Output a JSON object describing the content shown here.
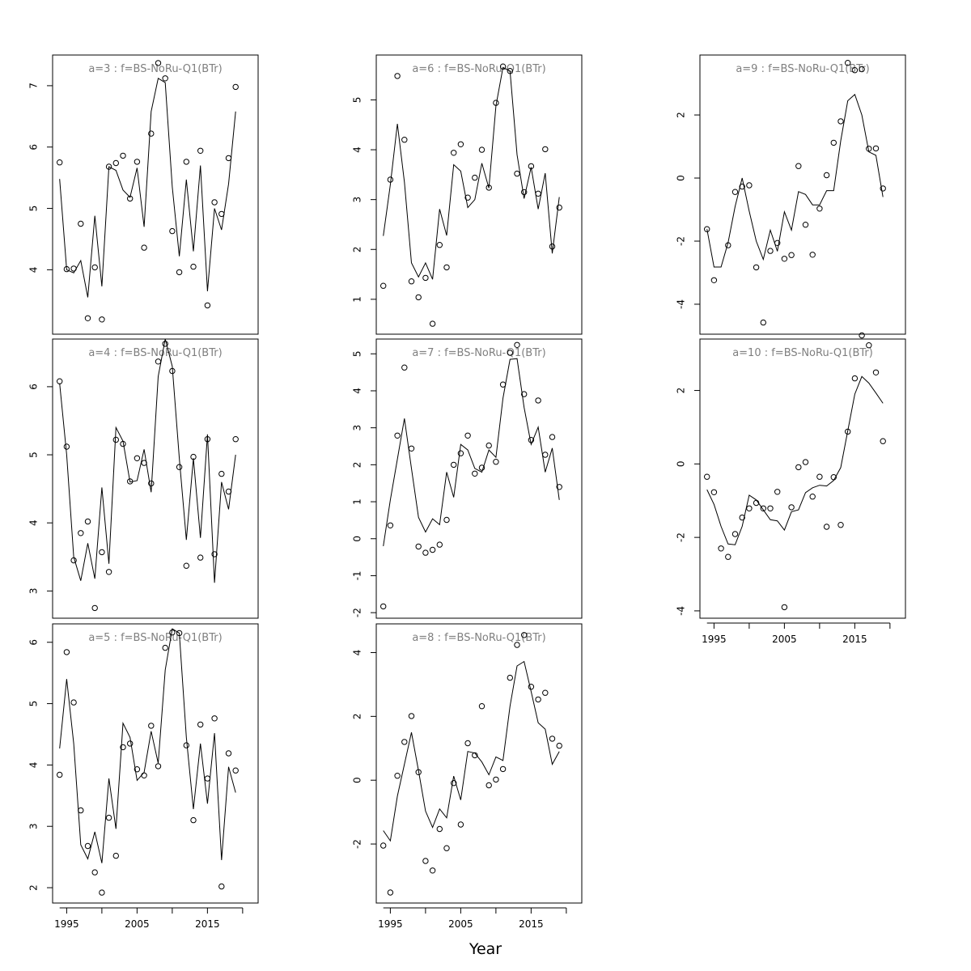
{
  "chart_data": {
    "type": "scatter",
    "xlabel": "Year",
    "x_ticks": [
      1995,
      2005,
      2015
    ],
    "panels": [
      {
        "title": "a=3 : f=BS-NoRu-Q1(BTr)",
        "years": [
          1994,
          1995,
          1996,
          1997,
          1998,
          1999,
          2000,
          2001,
          2002,
          2003,
          2004,
          2005,
          2006,
          2007,
          2008,
          2009,
          2010,
          2011,
          2012,
          2013,
          2014,
          2015,
          2016,
          2017,
          2018,
          2019
        ],
        "observed": [
          5.75,
          4.01,
          4.02,
          4.75,
          3.21,
          4.04,
          3.19,
          5.68,
          5.74,
          5.86,
          5.16,
          5.76,
          4.36,
          6.22,
          7.37,
          7.12,
          4.63,
          3.96,
          5.76,
          4.05,
          5.94,
          3.42,
          5.1,
          4.91,
          5.82,
          6.98
        ],
        "fitted": [
          5.48,
          4.0,
          3.95,
          4.15,
          3.55,
          4.88,
          3.73,
          5.68,
          5.62,
          5.3,
          5.18,
          5.66,
          4.7,
          6.58,
          7.12,
          7.05,
          5.35,
          4.22,
          5.47,
          4.3,
          5.7,
          3.65,
          5.0,
          4.65,
          5.4,
          6.58
        ],
        "yticks": [
          4,
          5,
          6,
          7
        ],
        "ylim": [
          2.95,
          7.5
        ]
      },
      {
        "title": "a=4 : f=BS-NoRu-Q1(BTr)",
        "years": [
          1994,
          1995,
          1996,
          1997,
          1998,
          1999,
          2000,
          2001,
          2002,
          2003,
          2004,
          2005,
          2006,
          2007,
          2008,
          2009,
          2010,
          2011,
          2012,
          2013,
          2014,
          2015,
          2016,
          2017,
          2018,
          2019
        ],
        "observed": [
          6.08,
          5.12,
          3.45,
          3.85,
          4.02,
          2.75,
          3.57,
          3.28,
          5.22,
          5.16,
          4.61,
          4.95,
          4.88,
          4.58,
          6.37,
          6.63,
          6.23,
          4.82,
          3.37,
          4.97,
          3.49,
          5.23,
          3.54,
          4.72,
          4.46,
          5.23
        ],
        "fitted": [
          6.05,
          5.0,
          3.5,
          3.15,
          3.7,
          3.18,
          4.52,
          3.4,
          5.4,
          5.2,
          4.6,
          4.62,
          5.08,
          4.45,
          6.15,
          6.7,
          6.3,
          4.95,
          3.75,
          4.95,
          3.78,
          5.3,
          3.12,
          4.6,
          4.2,
          5.0
        ],
        "yticks": [
          3,
          4,
          5,
          6
        ],
        "ylim": [
          2.6,
          6.7
        ]
      },
      {
        "title": "a=5 : f=BS-NoRu-Q1(BTr)",
        "years": [
          1994,
          1995,
          1996,
          1997,
          1998,
          1999,
          2000,
          2001,
          2002,
          2003,
          2004,
          2005,
          2006,
          2007,
          2008,
          2009,
          2010,
          2011,
          2012,
          2013,
          2014,
          2015,
          2016,
          2017,
          2018,
          2019
        ],
        "observed": [
          3.84,
          5.84,
          5.02,
          3.26,
          2.68,
          2.25,
          1.92,
          3.14,
          2.52,
          4.29,
          4.35,
          3.93,
          3.83,
          4.64,
          3.98,
          5.91,
          6.16,
          6.15,
          4.32,
          3.1,
          4.66,
          3.78,
          4.76,
          2.02,
          4.19,
          3.91
        ],
        "fitted": [
          4.27,
          5.4,
          4.35,
          2.7,
          2.47,
          2.91,
          2.4,
          3.78,
          2.96,
          4.68,
          4.45,
          3.75,
          3.88,
          4.55,
          4.03,
          5.55,
          6.22,
          6.15,
          4.45,
          3.28,
          4.35,
          3.37,
          4.52,
          2.45,
          3.97,
          3.55
        ],
        "yticks": [
          2,
          3,
          4,
          5,
          6
        ],
        "ylim": [
          1.75,
          6.3
        ]
      },
      {
        "title": "a=6 : f=BS-NoRu-Q1(BTr)",
        "years": [
          1994,
          1995,
          1996,
          1997,
          1998,
          1999,
          2000,
          2001,
          2002,
          2003,
          2004,
          2005,
          2006,
          2007,
          2008,
          2009,
          2010,
          2011,
          2012,
          2013,
          2014,
          2015,
          2016,
          2017,
          2018,
          2019
        ],
        "observed": [
          1.27,
          3.4,
          5.48,
          4.2,
          1.36,
          1.04,
          1.43,
          0.51,
          2.09,
          1.64,
          3.94,
          4.11,
          3.04,
          3.44,
          4.0,
          3.24,
          4.94,
          5.67,
          5.58,
          3.52,
          3.15,
          3.67,
          3.12,
          4.01,
          2.06,
          2.84
        ],
        "fitted": [
          2.27,
          3.3,
          4.52,
          3.35,
          1.73,
          1.45,
          1.73,
          1.4,
          2.81,
          2.28,
          3.7,
          3.57,
          2.84,
          3.0,
          3.73,
          3.23,
          4.88,
          5.65,
          5.58,
          3.9,
          3.02,
          3.65,
          2.81,
          3.53,
          1.92,
          3.05
        ],
        "yticks": [
          1,
          2,
          3,
          4,
          5
        ],
        "ylim": [
          0.3,
          5.9
        ]
      },
      {
        "title": "a=7 : f=BS-NoRu-Q1(BTr)",
        "years": [
          1994,
          1995,
          1996,
          1997,
          1998,
          1999,
          2000,
          2001,
          2002,
          2003,
          2004,
          2005,
          2006,
          2007,
          2008,
          2009,
          2010,
          2011,
          2012,
          2013,
          2014,
          2015,
          2016,
          2017,
          2018,
          2019
        ],
        "observed": [
          -1.83,
          0.36,
          2.79,
          4.63,
          2.44,
          -0.21,
          -0.38,
          -0.3,
          -0.16,
          0.51,
          2.0,
          2.31,
          2.79,
          1.76,
          1.92,
          2.52,
          2.08,
          4.17,
          5.03,
          5.24,
          3.91,
          2.67,
          3.74,
          2.27,
          2.75,
          1.4
        ],
        "fitted": [
          -0.2,
          1.05,
          2.15,
          3.25,
          1.9,
          0.58,
          0.18,
          0.54,
          0.38,
          1.8,
          1.12,
          2.55,
          2.4,
          1.9,
          1.8,
          2.4,
          2.2,
          3.8,
          4.85,
          4.87,
          3.55,
          2.55,
          3.02,
          1.8,
          2.45,
          1.05
        ],
        "yticks": [
          -2,
          -1,
          0,
          1,
          2,
          3,
          4,
          5
        ],
        "ylim": [
          -2.15,
          5.4
        ]
      },
      {
        "title": "a=8 : f=BS-NoRu-Q1(BTr)",
        "years": [
          1994,
          1995,
          1996,
          1997,
          1998,
          1999,
          2000,
          2001,
          2002,
          2003,
          2004,
          2005,
          2006,
          2007,
          2008,
          2009,
          2010,
          2011,
          2012,
          2013,
          2014,
          2015,
          2016,
          2017,
          2018,
          2019
        ],
        "observed": [
          -2.05,
          -3.52,
          0.14,
          1.2,
          2.01,
          0.25,
          -2.53,
          -2.83,
          -1.53,
          -2.13,
          -0.09,
          -1.39,
          1.16,
          0.78,
          2.32,
          -0.16,
          0.02,
          0.35,
          3.21,
          4.24,
          4.55,
          2.93,
          2.53,
          2.74,
          1.3,
          1.08
        ],
        "fitted": [
          -1.58,
          -1.9,
          -0.5,
          0.5,
          1.5,
          0.3,
          -0.97,
          -1.48,
          -0.9,
          -1.18,
          0.13,
          -0.62,
          0.9,
          0.85,
          0.57,
          0.17,
          0.73,
          0.62,
          2.32,
          3.58,
          3.72,
          2.78,
          1.8,
          1.6,
          0.5,
          0.9
        ],
        "yticks": [
          -2,
          0,
          2,
          4
        ],
        "ylim": [
          -3.85,
          4.9
        ]
      },
      {
        "title": "a=9 : f=BS-NoRu-Q1(BTr)",
        "years": [
          1994,
          1995,
          1996,
          1997,
          1998,
          1999,
          2000,
          2001,
          2002,
          2003,
          2004,
          2005,
          2006,
          2007,
          2008,
          2009,
          2010,
          2011,
          2012,
          2013,
          2014,
          2015,
          2016,
          2017,
          2018,
          2019
        ],
        "observed": [
          -1.62,
          -3.24,
          null,
          -2.13,
          -0.44,
          -0.27,
          -0.23,
          -2.83,
          -4.58,
          -2.31,
          -2.06,
          -2.56,
          -2.44,
          0.38,
          -1.48,
          -2.43,
          -0.97,
          0.09,
          1.12,
          1.8,
          3.65,
          3.42,
          3.45,
          0.93,
          0.94,
          -0.33
        ],
        "fitted": [
          -1.62,
          -2.82,
          -2.82,
          -2.05,
          -0.9,
          0.0,
          -1.05,
          -2.0,
          -2.58,
          -1.65,
          -2.32,
          -1.07,
          -1.65,
          -0.43,
          -0.52,
          -0.85,
          -0.85,
          -0.4,
          -0.4,
          1.18,
          2.45,
          2.65,
          2.0,
          0.83,
          0.72,
          -0.6
        ],
        "yticks": [
          -4,
          2,
          0,
          -2
        ],
        "ylim": [
          -4.95,
          3.9
        ]
      },
      {
        "title": "a=10 : f=BS-NoRu-Q1(BTr)",
        "years": [
          1994,
          1995,
          1996,
          1997,
          1998,
          1999,
          2000,
          2001,
          2002,
          2003,
          2004,
          2005,
          2006,
          2007,
          2008,
          2009,
          2010,
          2011,
          2012,
          2013,
          2014,
          2015,
          2016,
          2017,
          2018,
          2019
        ],
        "observed": [
          -0.35,
          -0.77,
          -2.3,
          -2.53,
          -1.91,
          -1.46,
          -1.21,
          -1.06,
          -1.21,
          -1.21,
          -0.76,
          -3.9,
          -1.18,
          -0.09,
          0.05,
          -0.89,
          -0.35,
          -1.71,
          -0.36,
          -1.66,
          0.88,
          2.33,
          3.5,
          3.23,
          2.49,
          0.62
        ],
        "fitted": [
          -0.7,
          -1.1,
          -1.7,
          -2.18,
          -2.2,
          -1.7,
          -0.85,
          -0.98,
          -1.25,
          -1.52,
          -1.55,
          -1.8,
          -1.3,
          -1.25,
          -0.78,
          -0.65,
          -0.58,
          -0.6,
          -0.45,
          -0.1,
          0.9,
          1.9,
          2.38,
          2.2,
          1.93,
          1.65
        ],
        "yticks": [
          -4,
          -2,
          0,
          2
        ],
        "ylim": [
          -4.2,
          3.4
        ]
      }
    ]
  }
}
